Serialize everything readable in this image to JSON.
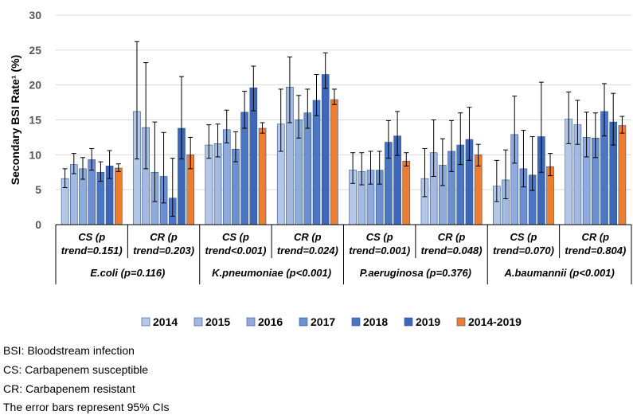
{
  "chart_data": {
    "type": "bar",
    "ylabel": "Secondary BSI Rate¹ (%)",
    "ylim": [
      0,
      30
    ],
    "yticks": [
      0,
      5,
      10,
      15,
      20,
      25,
      30
    ],
    "grid": "horizontal",
    "legend_position": "bottom",
    "groups": [
      {
        "organism": "E.coli (p=0.116)",
        "subgroups": [
          {
            "label": [
              "CS (p",
              "trend=0.151)"
            ],
            "values": [
              6.6,
              8.6,
              8.0,
              9.3,
              7.5,
              8.4,
              8.1
            ],
            "ci_low": [
              5.3,
              7.3,
              6.5,
              7.8,
              6.2,
              6.6,
              7.6
            ],
            "ci_high": [
              8.0,
              10.2,
              9.6,
              10.9,
              9.0,
              10.6,
              8.7
            ]
          },
          {
            "label": [
              "CR (p",
              "trend=0.203)"
            ],
            "values": [
              16.2,
              13.9,
              7.5,
              6.9,
              3.8,
              13.8,
              10.0
            ],
            "ci_low": [
              9.4,
              8.0,
              3.3,
              3.1,
              1.2,
              9.4,
              8.0
            ],
            "ci_high": [
              26.2,
              23.2,
              14.7,
              13.2,
              9.5,
              21.2,
              12.5
            ]
          }
        ]
      },
      {
        "organism": "K.pneumoniae (p<0.001)",
        "subgroups": [
          {
            "label": [
              "CS (p",
              "trend<0.001)"
            ],
            "values": [
              11.4,
              11.6,
              13.6,
              10.8,
              16.1,
              19.6,
              13.8
            ],
            "ci_low": [
              9.5,
              9.7,
              11.7,
              9.0,
              13.8,
              16.3,
              13.1
            ],
            "ci_high": [
              14.3,
              14.4,
              16.4,
              13.3,
              19.1,
              22.7,
              14.6
            ]
          },
          {
            "label": [
              "CR (p",
              "trend=0.024)"
            ],
            "values": [
              14.4,
              19.7,
              15.0,
              16.0,
              17.8,
              21.5,
              17.9
            ],
            "ci_low": [
              10.5,
              14.6,
              12.4,
              13.8,
              15.6,
              19.5,
              17.2
            ],
            "ci_high": [
              19.4,
              24.0,
              18.5,
              19.4,
              21.5,
              24.6,
              19.4
            ]
          }
        ]
      },
      {
        "organism": "P.aeruginosa (p=0.376)",
        "subgroups": [
          {
            "label": [
              "CS (p",
              "trend=0.001)"
            ],
            "values": [
              7.8,
              7.6,
              7.8,
              7.8,
              11.8,
              12.7,
              9.1
            ],
            "ci_low": [
              5.9,
              5.7,
              5.8,
              5.8,
              9.5,
              9.9,
              8.4
            ],
            "ci_high": [
              10.3,
              10.3,
              10.5,
              10.5,
              14.9,
              16.2,
              10.3
            ]
          },
          {
            "label": [
              "CR (p",
              "trend=0.048)"
            ],
            "values": [
              6.6,
              10.3,
              8.5,
              10.5,
              11.4,
              12.2,
              10.0
            ],
            "ci_low": [
              4.0,
              6.9,
              5.6,
              7.6,
              8.6,
              9.2,
              8.4
            ],
            "ci_high": [
              10.9,
              15.0,
              12.3,
              14.9,
              16.0,
              16.8,
              11.5
            ]
          }
        ]
      },
      {
        "organism": "A.baumannii (p<0.001)",
        "subgroups": [
          {
            "label": [
              "CS (p",
              "trend=0.070)"
            ],
            "values": [
              5.5,
              6.4,
              12.9,
              8.0,
              7.1,
              12.6,
              8.3
            ],
            "ci_low": [
              3.3,
              3.7,
              8.8,
              5.4,
              4.9,
              7.5,
              7.0
            ],
            "ci_high": [
              9.2,
              10.7,
              18.4,
              13.5,
              12.6,
              20.4,
              10.2
            ]
          },
          {
            "label": [
              "CR (p",
              "trend=0.804)"
            ],
            "values": [
              15.1,
              14.3,
              12.5,
              12.4,
              16.2,
              14.7,
              14.2
            ],
            "ci_low": [
              11.6,
              11.5,
              9.7,
              9.6,
              12.7,
              11.4,
              13.1
            ],
            "ci_high": [
              19.0,
              17.8,
              16.1,
              16.0,
              20.2,
              18.8,
              15.5
            ]
          }
        ]
      }
    ],
    "legend": [
      {
        "name": "2014",
        "color": "#b4c7e7"
      },
      {
        "name": "2015",
        "color": "#a3b9e0"
      },
      {
        "name": "2016",
        "color": "#8faadc"
      },
      {
        "name": "2017",
        "color": "#6b8fd0"
      },
      {
        "name": "2018",
        "color": "#4b76c6"
      },
      {
        "name": "2019",
        "color": "#3e67b8"
      },
      {
        "name": "2014-2019",
        "color": "#ed7d31"
      }
    ]
  },
  "notes": [
    "BSI: Bloodstream infection",
    "CS: Carbapenem susceptible",
    "CR: Carbapenem resistant",
    "The error bars represent 95% CIs"
  ]
}
